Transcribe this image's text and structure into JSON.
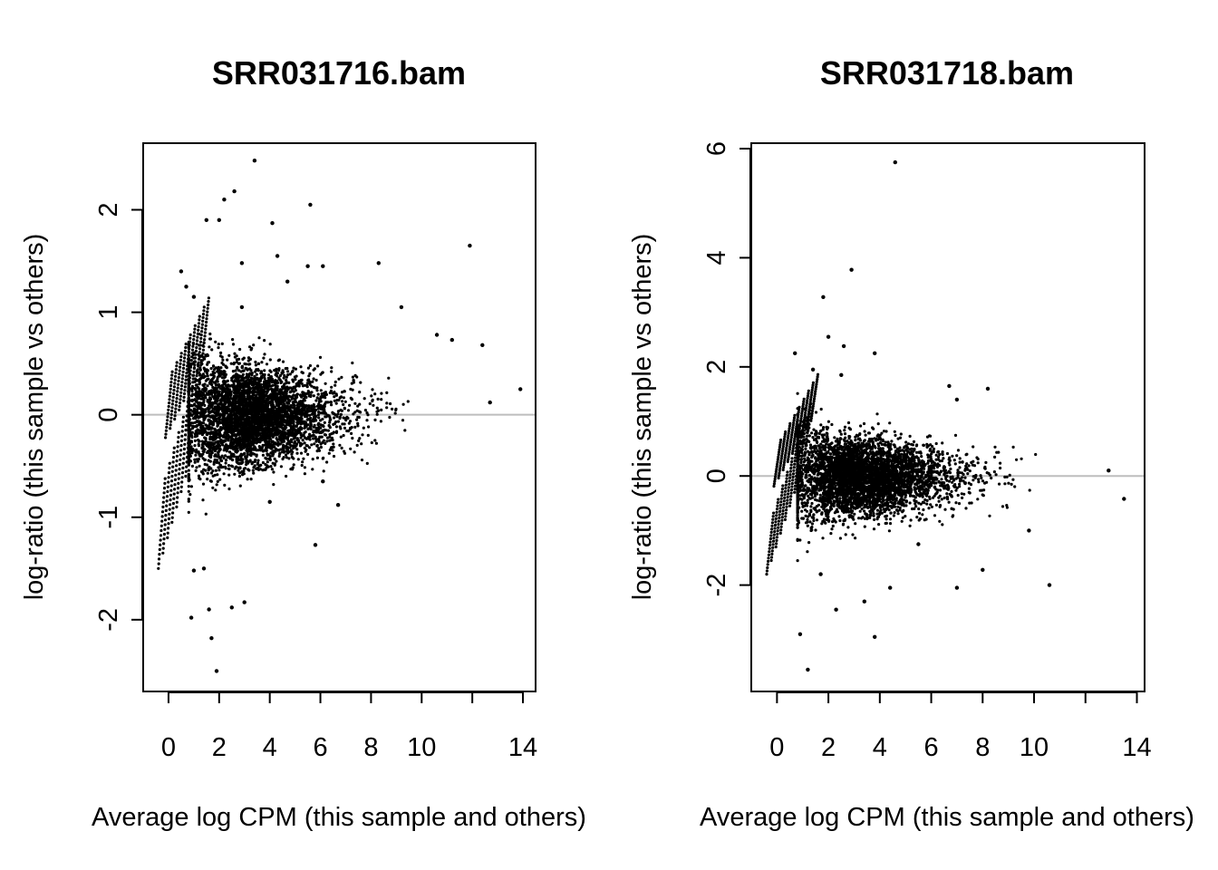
{
  "chart_data": [
    {
      "type": "scatter",
      "title": "SRR031716.bam",
      "xlabel": "Average log CPM (this sample and others)",
      "ylabel": "log-ratio (this sample vs others)",
      "xlim": [
        -1,
        14.5
      ],
      "ylim": [
        -2.7,
        2.65
      ],
      "xticks": [
        0,
        2,
        4,
        6,
        8,
        10,
        12,
        14
      ],
      "xtick_labels": [
        "0",
        "2",
        "4",
        "6",
        "8",
        "10",
        "",
        "14"
      ],
      "yticks": [
        -2,
        -1,
        0,
        1,
        2
      ],
      "ytick_labels": [
        "-2",
        "-1",
        "0",
        "1",
        "2"
      ],
      "reference_line": 0,
      "reference_color": "#bdbdbd",
      "point_color": "#000000",
      "grid": false,
      "series": [
        {
          "x": [
            3.4,
            5.6,
            11.9,
            2.2,
            2.6,
            2.0,
            1.5,
            4.1,
            0.7,
            1.0,
            0.5,
            4.3,
            2.9,
            4.7,
            2.9,
            5.5,
            6.1,
            8.3,
            9.2,
            10.6,
            11.2,
            12.4,
            13.9,
            12.7,
            1.0,
            1.4,
            1.6,
            0.9,
            2.5,
            3.0,
            5.8,
            1.7,
            1.9,
            4.0,
            6.7,
            6.1
          ],
          "y": [
            2.48,
            2.05,
            1.65,
            2.1,
            2.18,
            1.9,
            1.9,
            1.87,
            1.25,
            1.15,
            1.4,
            1.55,
            1.05,
            1.3,
            1.48,
            1.45,
            1.45,
            1.48,
            1.05,
            0.78,
            0.73,
            0.68,
            0.25,
            0.12,
            -1.52,
            -1.5,
            -1.9,
            -1.98,
            -1.88,
            -1.83,
            -1.27,
            -2.18,
            -2.5,
            -0.85,
            -0.88,
            -0.65
          ]
        }
      ]
    },
    {
      "type": "scatter",
      "title": "SRR031718.bam",
      "xlabel": "Average log CPM (this sample and others)",
      "ylabel": "log-ratio (this sample vs others)",
      "xlim": [
        -1,
        14.3
      ],
      "ylim": [
        -3.95,
        6.1
      ],
      "xticks": [
        0,
        2,
        4,
        6,
        8,
        10,
        12,
        14
      ],
      "xtick_labels": [
        "0",
        "2",
        "4",
        "6",
        "8",
        "10",
        "",
        "14"
      ],
      "yticks": [
        -2,
        0,
        2,
        4,
        6
      ],
      "ytick_labels": [
        "-2",
        "0",
        "2",
        "4",
        "6"
      ],
      "reference_line": 0,
      "reference_color": "#bdbdbd",
      "point_color": "#000000",
      "grid": false,
      "series": [
        {
          "x": [
            4.6,
            2.9,
            1.8,
            2.0,
            2.6,
            3.8,
            2.5,
            0.7,
            1.4,
            6.7,
            8.2,
            7.0,
            13.5,
            12.9,
            1.2,
            0.9,
            3.4,
            3.8,
            4.4,
            7.0,
            8.0,
            10.6,
            1.7,
            2.3,
            5.5,
            9.8
          ],
          "y": [
            5.75,
            3.78,
            3.28,
            2.55,
            2.38,
            2.25,
            1.85,
            2.25,
            1.95,
            1.65,
            1.6,
            1.4,
            -0.42,
            0.1,
            -3.55,
            -2.9,
            -2.3,
            -2.95,
            -2.05,
            -2.05,
            -1.72,
            -2.0,
            -1.8,
            -2.45,
            -1.25,
            -1.0
          ]
        }
      ]
    }
  ]
}
